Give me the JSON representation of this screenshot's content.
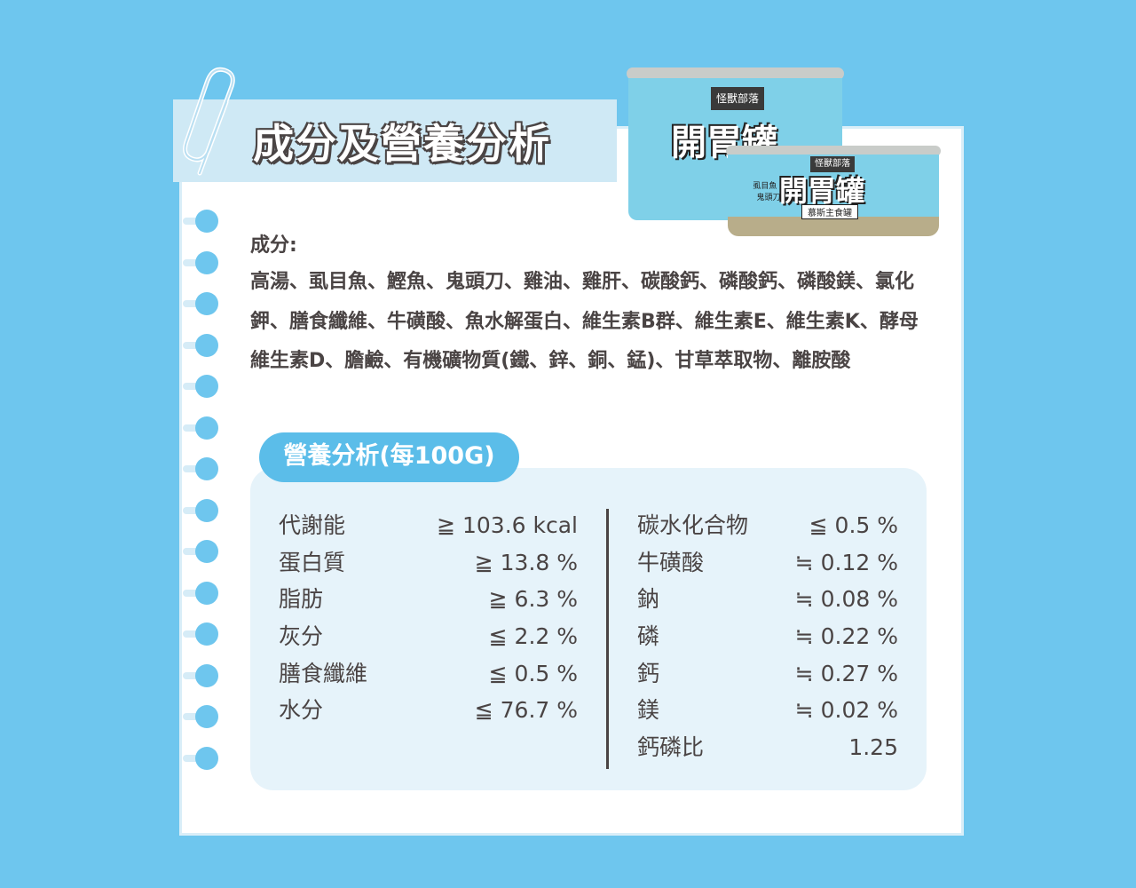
{
  "title": "成分及營養分析",
  "product": {
    "brand": "怪獸部落",
    "name": "開胃罐",
    "subtitle": "慕斯主食罐",
    "flavor": "虱目魚 x 鬼頭刀"
  },
  "ingredients": {
    "label": "成分:",
    "text": "高湯、虱目魚、鰹魚、鬼頭刀、雞油、雞肝、碳酸鈣、磷酸鈣、磷酸鎂、氯化鉀、膳食纖維、牛磺酸、魚水解蛋白、維生素B群、維生素E、維生素K、酵母維生素D、膽鹼、有機礦物質(鐵、鋅、銅、錳)、甘草萃取物、離胺酸"
  },
  "nutrition": {
    "label": "營養分析(每100G)",
    "left": [
      {
        "name": "代謝能",
        "value": "≧ 103.6 kcal"
      },
      {
        "name": "蛋白質",
        "value": "≧ 13.8 %"
      },
      {
        "name": "脂肪",
        "value": "≧ 6.3 %"
      },
      {
        "name": "灰分",
        "value": "≦ 2.2 %"
      },
      {
        "name": "膳食纖維",
        "value": "≦ 0.5 %"
      },
      {
        "name": "水分",
        "value": "≦ 76.7 %"
      }
    ],
    "right": [
      {
        "name": "碳水化合物",
        "value": "≦ 0.5 %"
      },
      {
        "name": "牛磺酸",
        "value": "≒ 0.12 %"
      },
      {
        "name": "鈉",
        "value": "≒ 0.08 %"
      },
      {
        "name": "磷",
        "value": "≒ 0.22 %"
      },
      {
        "name": "鈣",
        "value": "≒ 0.27 %"
      },
      {
        "name": "鎂",
        "value": "≒ 0.02 %"
      },
      {
        "name": "鈣磷比",
        "value": "1.25"
      }
    ]
  },
  "colors": {
    "background": "#6ec6ee",
    "accent": "#5bbde9",
    "panel": "#e6f3fa",
    "text": "#4a4444"
  }
}
